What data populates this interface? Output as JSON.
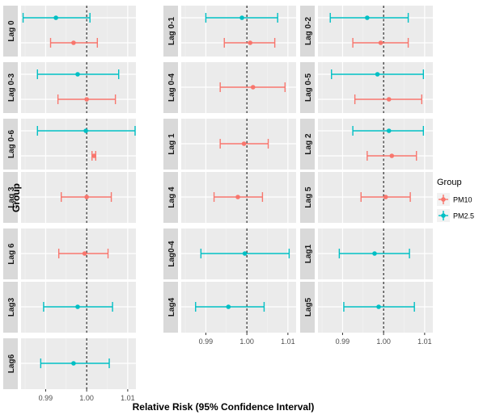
{
  "chart_data": {
    "type": "forest",
    "title": "",
    "xlabel": "Relative Risk (95% Confidence Interval)",
    "ylabel": "Group",
    "xlim": [
      0.984,
      1.012
    ],
    "x_ticks": [
      0.99,
      1.0,
      1.01
    ],
    "x_tick_labels": [
      "0.99",
      "1.00",
      "1.01"
    ],
    "reference_line": 1.0,
    "legend": {
      "title": "Group",
      "placement": "right",
      "entries": [
        {
          "name": "PM10",
          "color": "#F8766D"
        },
        {
          "name": "PM2.5",
          "color": "#00BFC4"
        }
      ]
    },
    "panels": [
      {
        "label": "Lag 0",
        "points": [
          {
            "series": "PM2.5",
            "estimate": 0.9925,
            "lower": 0.9845,
            "upper": 1.0008
          },
          {
            "series": "PM10",
            "estimate": 0.9968,
            "lower": 0.9912,
            "upper": 1.0026
          }
        ]
      },
      {
        "label": "Lag 0-1",
        "points": [
          {
            "series": "PM2.5",
            "estimate": 0.9988,
            "lower": 0.99,
            "upper": 1.0075
          },
          {
            "series": "PM10",
            "estimate": 1.0008,
            "lower": 0.9945,
            "upper": 1.0068
          }
        ]
      },
      {
        "label": "Lag 0-2",
        "points": [
          {
            "series": "PM2.5",
            "estimate": 0.996,
            "lower": 0.987,
            "upper": 1.006
          },
          {
            "series": "PM10",
            "estimate": 0.9993,
            "lower": 0.9925,
            "upper": 1.006
          }
        ]
      },
      {
        "label": "Lag 0-3",
        "points": [
          {
            "series": "PM2.5",
            "estimate": 0.9978,
            "lower": 0.988,
            "upper": 1.0078
          },
          {
            "series": "PM10",
            "estimate": 1.0,
            "lower": 0.993,
            "upper": 1.007
          }
        ]
      },
      {
        "label": "Lag 0-4",
        "points": [
          {
            "series": "PM10",
            "estimate": 1.0015,
            "lower": 0.9935,
            "upper": 1.0093
          }
        ]
      },
      {
        "label": "Lag 0-5",
        "points": [
          {
            "series": "PM2.5",
            "estimate": 0.9985,
            "lower": 0.9873,
            "upper": 1.0097
          },
          {
            "series": "PM10",
            "estimate": 1.0013,
            "lower": 0.993,
            "upper": 1.0093
          }
        ]
      },
      {
        "label": "Lag 0-6",
        "points": [
          {
            "series": "PM2.5",
            "estimate": 0.9998,
            "lower": 0.988,
            "upper": 1.0118
          },
          {
            "series": "PM10",
            "estimate": 1.0018,
            "lower": 1.0013,
            "upper": 1.0022
          }
        ]
      },
      {
        "label": "Lag 1",
        "points": [
          {
            "series": "PM10",
            "estimate": 0.9993,
            "lower": 0.9935,
            "upper": 1.0052
          }
        ]
      },
      {
        "label": "Lag 2",
        "points": [
          {
            "series": "PM2.5",
            "estimate": 1.0013,
            "lower": 0.9925,
            "upper": 1.0097
          },
          {
            "series": "PM10",
            "estimate": 1.002,
            "lower": 0.996,
            "upper": 1.008
          }
        ]
      },
      {
        "label": "Lag 3",
        "points": [
          {
            "series": "PM10",
            "estimate": 1.0,
            "lower": 0.9938,
            "upper": 1.006
          }
        ]
      },
      {
        "label": "Lag 4",
        "points": [
          {
            "series": "PM10",
            "estimate": 0.9978,
            "lower": 0.992,
            "upper": 1.0038
          }
        ]
      },
      {
        "label": "Lag 5",
        "points": [
          {
            "series": "PM10",
            "estimate": 1.0005,
            "lower": 0.9945,
            "upper": 1.0065
          }
        ]
      },
      {
        "label": "Lag 6",
        "points": [
          {
            "series": "PM10",
            "estimate": 0.9995,
            "lower": 0.9932,
            "upper": 1.0052
          }
        ]
      },
      {
        "label": "Lag0-4",
        "points": [
          {
            "series": "PM2.5",
            "estimate": 0.9995,
            "lower": 0.9888,
            "upper": 1.0103
          }
        ]
      },
      {
        "label": "Lag1",
        "points": [
          {
            "series": "PM2.5",
            "estimate": 0.9978,
            "lower": 0.9892,
            "upper": 1.0063
          }
        ]
      },
      {
        "label": "Lag3",
        "points": [
          {
            "series": "PM2.5",
            "estimate": 0.9978,
            "lower": 0.9895,
            "upper": 1.0063
          }
        ]
      },
      {
        "label": "Lag4",
        "points": [
          {
            "series": "PM2.5",
            "estimate": 0.9955,
            "lower": 0.9875,
            "upper": 1.0042
          }
        ]
      },
      {
        "label": "Lag5",
        "points": [
          {
            "series": "PM2.5",
            "estimate": 0.9988,
            "lower": 0.9903,
            "upper": 1.0075
          }
        ]
      },
      {
        "label": "Lag6",
        "points": [
          {
            "series": "PM2.5",
            "estimate": 0.9968,
            "lower": 0.9888,
            "upper": 1.0055
          }
        ]
      }
    ]
  }
}
